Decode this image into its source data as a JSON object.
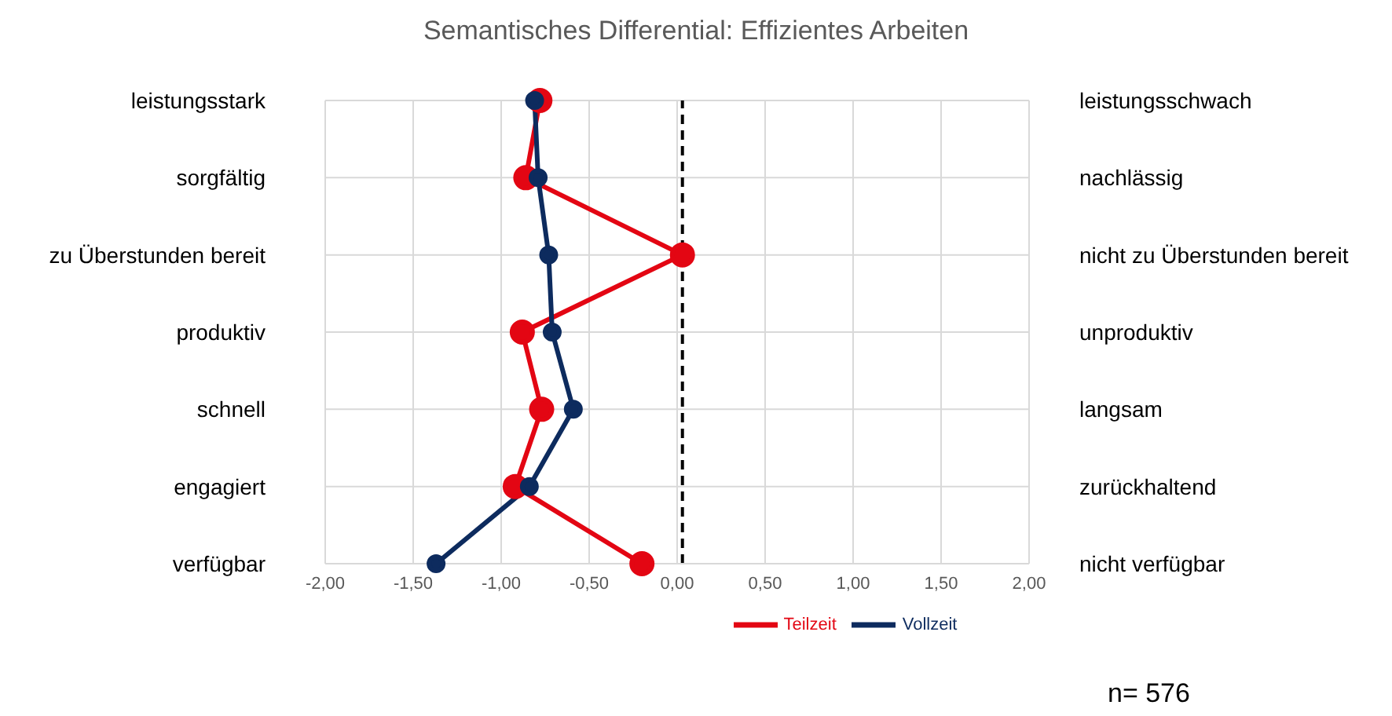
{
  "chart_data": {
    "type": "line",
    "orientation": "horizontal",
    "title": "Semantisches Differential: Effizientes Arbeiten",
    "categories": [
      "leistungsstark",
      "sorgfältig",
      "zu Überstunden bereit",
      "produktiv",
      "schnell",
      "engagiert",
      "verfügbar"
    ],
    "y2_categories": [
      "leistungsschwach",
      "nachlässig",
      "nicht zu Überstunden bereit",
      "unproduktiv",
      "langsam",
      "zurückhaltend",
      "nicht verfügbar"
    ],
    "series": [
      {
        "name": "Teilzeit",
        "color": "#e30613",
        "values": [
          -0.78,
          -0.86,
          0.03,
          -0.88,
          -0.77,
          -0.92,
          -0.2
        ]
      },
      {
        "name": "Vollzeit",
        "color": "#0d2b5e",
        "values": [
          -0.81,
          -0.79,
          -0.73,
          -0.71,
          -0.59,
          -0.84,
          -1.37
        ]
      }
    ],
    "xlim": [
      -2,
      2
    ],
    "xticks": [
      {
        "value": -2,
        "label": "-2,00"
      },
      {
        "value": -1.5,
        "label": "-1,50"
      },
      {
        "value": -1,
        "label": "-1,00"
      },
      {
        "value": -0.5,
        "label": "-0,50"
      },
      {
        "value": 0,
        "label": "0,00"
      },
      {
        "value": 0.5,
        "label": "0,50"
      },
      {
        "value": 1,
        "label": "1,00"
      },
      {
        "value": 1.5,
        "label": "1,50"
      },
      {
        "value": 2,
        "label": "2,00"
      }
    ],
    "ref_lines": [
      {
        "axis": "x",
        "value": 0.03,
        "color": "#000000",
        "line_style": "dashed"
      }
    ],
    "grid": true,
    "legend": "bottom",
    "marker": "circle",
    "line_style": "solid",
    "annotations": [
      "n= 576"
    ]
  }
}
